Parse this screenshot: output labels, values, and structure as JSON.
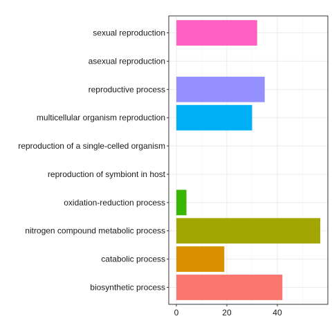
{
  "chart_data": {
    "type": "bar",
    "orientation": "horizontal",
    "categories": [
      "sexual reproduction",
      "asexual reproduction",
      "reproductive process",
      "multicellular organism reproduction",
      "reproduction of a single-celled organism",
      "reproduction of symbiont in host",
      "oxidation-reduction process",
      "nitrogen compound metabolic process",
      "catabolic process",
      "biosynthetic process"
    ],
    "values": [
      32,
      0,
      35,
      30,
      0,
      0,
      4,
      57,
      19,
      42
    ],
    "colors": [
      "#FF61C3",
      "#DB72FB",
      "#9590FF",
      "#00B0F6",
      "#00BFC4",
      "#00C08B",
      "#39B600",
      "#A3A500",
      "#D89000",
      "#F8766D"
    ],
    "x_ticks": [
      0,
      20,
      40
    ],
    "xlim": [
      -3,
      60
    ],
    "title": "",
    "xlabel": "",
    "ylabel": "",
    "grid": true,
    "legend": "none"
  }
}
